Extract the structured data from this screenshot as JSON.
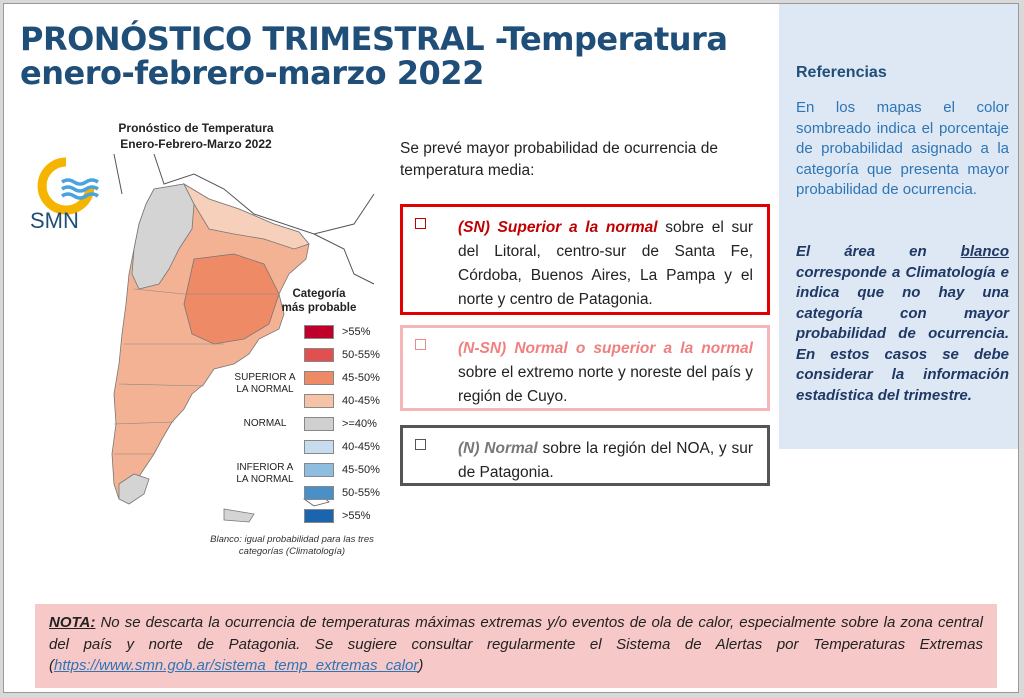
{
  "title": {
    "line1": "PRONÓSTICO TRIMESTRAL -Temperatura",
    "line2": "enero-febrero-marzo 2022"
  },
  "map": {
    "title_line1": "Pronóstico de Temperatura",
    "title_line2": "Enero-Febrero-Marzo 2022",
    "logo_text": "SMN",
    "legend_title": "Categoría más probable",
    "legend": [
      {
        "label": ">55%",
        "color": "#c0002a"
      },
      {
        "label": "50-55%",
        "color": "#e05050"
      },
      {
        "label": "45-50%",
        "color": "#ef8a66"
      },
      {
        "label": "40-45%",
        "color": "#f6c3a8"
      },
      {
        "label": ">=40%",
        "color": "#d0d0d0"
      },
      {
        "label": "40-45%",
        "color": "#c7dcef"
      },
      {
        "label": "45-50%",
        "color": "#8fbde0"
      },
      {
        "label": "50-55%",
        "color": "#4a90c8"
      },
      {
        "label": ">55%",
        "color": "#1a65ad"
      }
    ],
    "categories": {
      "superior": "SUPERIOR A LA NORMAL",
      "normal": "NORMAL",
      "inferior": "INFERIOR A LA NORMAL"
    },
    "footnote": "Blanco: igual probabilidad para las tres categorías (Climatología)"
  },
  "intro": "Se prevé mayor probabilidad de ocurrencia de temperatura media:",
  "boxes": {
    "sn": {
      "lead": "(SN) Superior a la normal",
      "text": " sobre el sur del Litoral, centro-sur de Santa Fe, Córdoba, Buenos Aires, La Pampa y el norte y centro de Patagonia."
    },
    "nsn": {
      "lead": "(N-SN) Normal o superior a la normal",
      "text": " sobre el extremo norte y noreste del país y región de Cuyo."
    },
    "n": {
      "lead": "(N) Normal",
      "text": " sobre la región del NOA, y sur de Patagonia."
    }
  },
  "references": {
    "title": "Referencias",
    "p1": "En los mapas el color sombreado indica el porcentaje de probabilidad asignado a la categoría que presenta mayor probabilidad de ocurrencia.",
    "p2_a": "El área en ",
    "p2_u": "blanco",
    "p2_b": " corresponde a Climatología e indica que no hay una categoría con mayor probabilidad de ocurrencia. En estos casos se debe considerar la información estadística del trimestre."
  },
  "nota": {
    "label": "NOTA:",
    "text": " No se descarta la ocurrencia de temperaturas máximas extremas y/o eventos de ola de calor, especialmente sobre la zona central del país y norte de Patagonia. Se sugiere consultar regularmente el Sistema de Alertas por Temperaturas Extremas (",
    "link": "https://www.smn.gob.ar/sistema_temp_extremas_calor",
    "end": ")"
  }
}
